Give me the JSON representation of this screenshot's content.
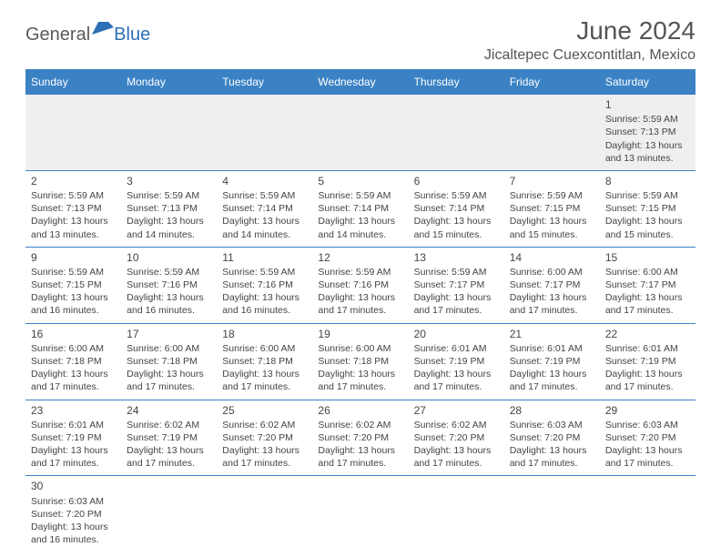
{
  "logo": {
    "general": "General",
    "blue": "Blue"
  },
  "title": "June 2024",
  "location": "Jicaltepec Cuexcontitlan, Mexico",
  "colors": {
    "header_bg": "#3a82c4",
    "header_text": "#ffffff",
    "row_stripe": "#efefef",
    "row_sep": "#3a82c4",
    "logo_shape": "#2d6fb5"
  },
  "weekdays": [
    "Sunday",
    "Monday",
    "Tuesday",
    "Wednesday",
    "Thursday",
    "Friday",
    "Saturday"
  ],
  "weeks": [
    [
      null,
      null,
      null,
      null,
      null,
      null,
      {
        "n": "1",
        "sr": "5:59 AM",
        "ss": "7:13 PM",
        "dl": "13 hours and 13 minutes."
      }
    ],
    [
      {
        "n": "2",
        "sr": "5:59 AM",
        "ss": "7:13 PM",
        "dl": "13 hours and 13 minutes."
      },
      {
        "n": "3",
        "sr": "5:59 AM",
        "ss": "7:13 PM",
        "dl": "13 hours and 14 minutes."
      },
      {
        "n": "4",
        "sr": "5:59 AM",
        "ss": "7:14 PM",
        "dl": "13 hours and 14 minutes."
      },
      {
        "n": "5",
        "sr": "5:59 AM",
        "ss": "7:14 PM",
        "dl": "13 hours and 14 minutes."
      },
      {
        "n": "6",
        "sr": "5:59 AM",
        "ss": "7:14 PM",
        "dl": "13 hours and 15 minutes."
      },
      {
        "n": "7",
        "sr": "5:59 AM",
        "ss": "7:15 PM",
        "dl": "13 hours and 15 minutes."
      },
      {
        "n": "8",
        "sr": "5:59 AM",
        "ss": "7:15 PM",
        "dl": "13 hours and 15 minutes."
      }
    ],
    [
      {
        "n": "9",
        "sr": "5:59 AM",
        "ss": "7:15 PM",
        "dl": "13 hours and 16 minutes."
      },
      {
        "n": "10",
        "sr": "5:59 AM",
        "ss": "7:16 PM",
        "dl": "13 hours and 16 minutes."
      },
      {
        "n": "11",
        "sr": "5:59 AM",
        "ss": "7:16 PM",
        "dl": "13 hours and 16 minutes."
      },
      {
        "n": "12",
        "sr": "5:59 AM",
        "ss": "7:16 PM",
        "dl": "13 hours and 17 minutes."
      },
      {
        "n": "13",
        "sr": "5:59 AM",
        "ss": "7:17 PM",
        "dl": "13 hours and 17 minutes."
      },
      {
        "n": "14",
        "sr": "6:00 AM",
        "ss": "7:17 PM",
        "dl": "13 hours and 17 minutes."
      },
      {
        "n": "15",
        "sr": "6:00 AM",
        "ss": "7:17 PM",
        "dl": "13 hours and 17 minutes."
      }
    ],
    [
      {
        "n": "16",
        "sr": "6:00 AM",
        "ss": "7:18 PM",
        "dl": "13 hours and 17 minutes."
      },
      {
        "n": "17",
        "sr": "6:00 AM",
        "ss": "7:18 PM",
        "dl": "13 hours and 17 minutes."
      },
      {
        "n": "18",
        "sr": "6:00 AM",
        "ss": "7:18 PM",
        "dl": "13 hours and 17 minutes."
      },
      {
        "n": "19",
        "sr": "6:00 AM",
        "ss": "7:18 PM",
        "dl": "13 hours and 17 minutes."
      },
      {
        "n": "20",
        "sr": "6:01 AM",
        "ss": "7:19 PM",
        "dl": "13 hours and 17 minutes."
      },
      {
        "n": "21",
        "sr": "6:01 AM",
        "ss": "7:19 PM",
        "dl": "13 hours and 17 minutes."
      },
      {
        "n": "22",
        "sr": "6:01 AM",
        "ss": "7:19 PM",
        "dl": "13 hours and 17 minutes."
      }
    ],
    [
      {
        "n": "23",
        "sr": "6:01 AM",
        "ss": "7:19 PM",
        "dl": "13 hours and 17 minutes."
      },
      {
        "n": "24",
        "sr": "6:02 AM",
        "ss": "7:19 PM",
        "dl": "13 hours and 17 minutes."
      },
      {
        "n": "25",
        "sr": "6:02 AM",
        "ss": "7:20 PM",
        "dl": "13 hours and 17 minutes."
      },
      {
        "n": "26",
        "sr": "6:02 AM",
        "ss": "7:20 PM",
        "dl": "13 hours and 17 minutes."
      },
      {
        "n": "27",
        "sr": "6:02 AM",
        "ss": "7:20 PM",
        "dl": "13 hours and 17 minutes."
      },
      {
        "n": "28",
        "sr": "6:03 AM",
        "ss": "7:20 PM",
        "dl": "13 hours and 17 minutes."
      },
      {
        "n": "29",
        "sr": "6:03 AM",
        "ss": "7:20 PM",
        "dl": "13 hours and 17 minutes."
      }
    ],
    [
      {
        "n": "30",
        "sr": "6:03 AM",
        "ss": "7:20 PM",
        "dl": "13 hours and 16 minutes."
      },
      null,
      null,
      null,
      null,
      null,
      null
    ]
  ],
  "labels": {
    "sunrise": "Sunrise:",
    "sunset": "Sunset:",
    "daylight": "Daylight:"
  }
}
